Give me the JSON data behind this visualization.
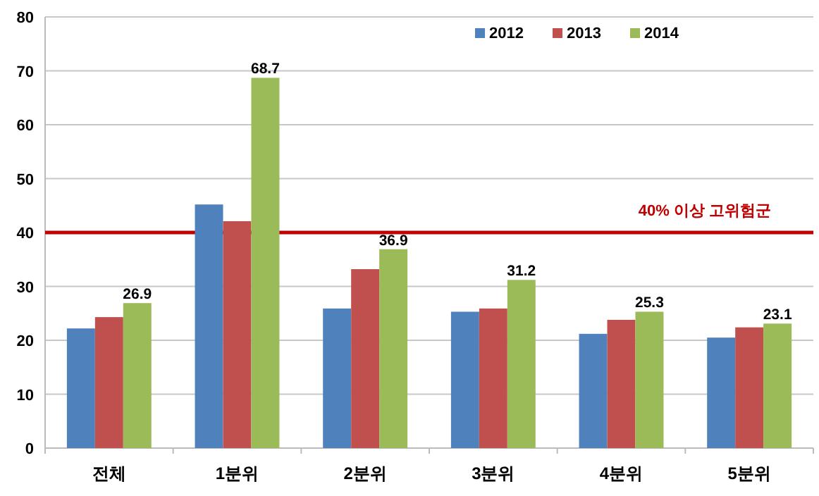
{
  "chart_data": {
    "type": "bar",
    "categories": [
      "전체",
      "1분위",
      "2분위",
      "3분위",
      "4분위",
      "5분위"
    ],
    "series": [
      {
        "name": "2012",
        "color": "#4f81bd",
        "values": [
          22.2,
          45.2,
          25.9,
          25.3,
          21.2,
          20.5
        ]
      },
      {
        "name": "2013",
        "color": "#c0504d",
        "values": [
          24.3,
          42.1,
          33.2,
          25.9,
          23.8,
          22.4
        ]
      },
      {
        "name": "2014",
        "color": "#9bbb59",
        "values": [
          26.9,
          68.7,
          36.9,
          31.2,
          25.3,
          23.1
        ],
        "value_labels": [
          "26.9",
          "68.7",
          "36.9",
          "31.2",
          "25.3",
          "23.1"
        ]
      }
    ],
    "ylim": [
      0,
      80
    ],
    "yticks": [
      0,
      10,
      20,
      30,
      40,
      50,
      60,
      70,
      80
    ],
    "grid": "y",
    "legend": "top right",
    "ref_lines": [
      {
        "axis": "y",
        "value": 40,
        "label": "40% 이상 고위험군",
        "color": "#c00000"
      }
    ]
  }
}
